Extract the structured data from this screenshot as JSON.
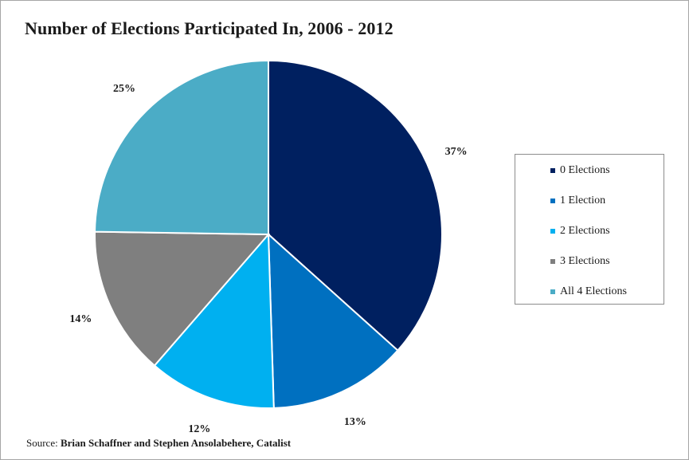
{
  "chart_data": {
    "type": "pie",
    "title": "Number of Elections Participated In, 2006 - 2012",
    "slices": [
      {
        "label": "0 Elections",
        "value": 37,
        "display": "37%",
        "color": "#002060"
      },
      {
        "label": "1 Election",
        "value": 13,
        "display": "13%",
        "color": "#0070c0"
      },
      {
        "label": "2 Elections",
        "value": 12,
        "display": "12%",
        "color": "#00b0f0"
      },
      {
        "label": "3 Elections",
        "value": 14,
        "display": "14%",
        "color": "#7f7f7f"
      },
      {
        "label": "All 4 Elections",
        "value": 25,
        "display": "25%",
        "color": "#4bacc6"
      }
    ],
    "legend_position": "right"
  },
  "source": {
    "prefix": "Source: ",
    "text": "Brian Schaffner and Stephen Ansolabehere, Catalist"
  }
}
